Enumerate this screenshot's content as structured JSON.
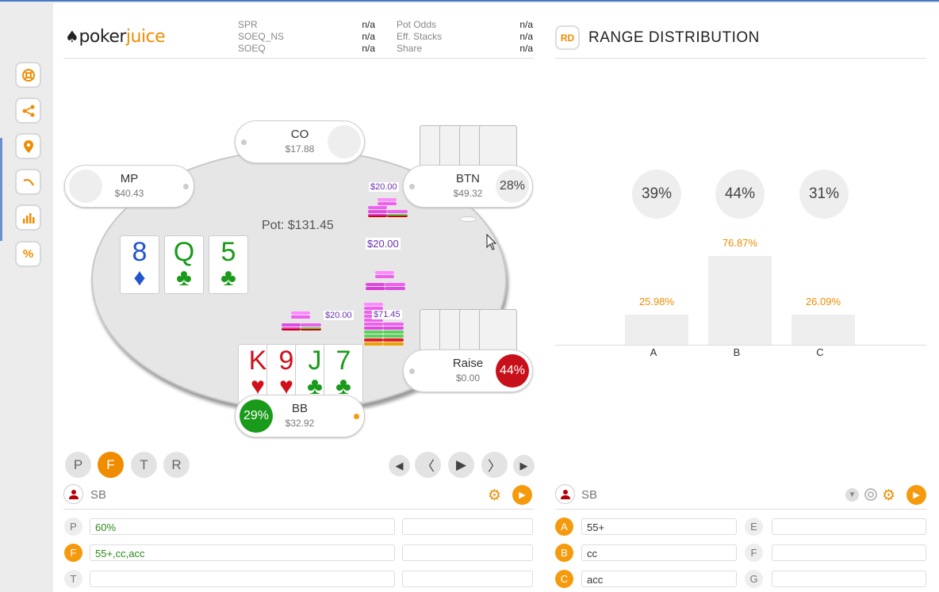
{
  "logo": {
    "part1": "poker",
    "part2": "juice"
  },
  "stats": {
    "left": [
      {
        "label": "SPR",
        "value": "n/a"
      },
      {
        "label": "SOEQ_NS",
        "value": "n/a"
      },
      {
        "label": "SOEQ",
        "value": "n/a"
      }
    ],
    "right": [
      {
        "label": "Pot Odds",
        "value": "n/a"
      },
      {
        "label": "Eff. Stacks",
        "value": "n/a"
      },
      {
        "label": "Share",
        "value": "n/a"
      }
    ]
  },
  "sidebar": {
    "icons": [
      "lifebuoy-icon",
      "share-icon",
      "location-pin-icon",
      "curve-icon",
      "bar-chart-icon",
      "percent-icon"
    ],
    "percent_glyph": "%"
  },
  "table": {
    "pot": "Pot: $131.45",
    "seats": {
      "co": {
        "name": "CO",
        "stack": "$17.88"
      },
      "mp": {
        "name": "MP",
        "stack": "$40.43"
      },
      "btn": {
        "name": "BTN",
        "stack": "$49.32",
        "equity": "28%"
      },
      "raise": {
        "name": "Raise",
        "stack": "$0.00",
        "equity": "44%"
      },
      "bb": {
        "name": "BB",
        "stack": "$32.92",
        "equity": "29%"
      }
    },
    "board": [
      {
        "rank": "8",
        "suit": "♦",
        "color": "#2255cc"
      },
      {
        "rank": "Q",
        "suit": "♣",
        "color": "#1a9a1a"
      },
      {
        "rank": "5",
        "suit": "♣",
        "color": "#1a9a1a"
      }
    ],
    "hero_cards": [
      {
        "rank": "K",
        "suit": "♥",
        "color": "#d0101a"
      },
      {
        "rank": "9",
        "suit": "♥",
        "color": "#d0101a"
      },
      {
        "rank": "J",
        "suit": "♣",
        "color": "#1a9a1a"
      },
      {
        "rank": "7",
        "suit": "♣",
        "color": "#1a9a1a"
      }
    ],
    "bets": {
      "btn": "$20.00",
      "middle": "$20.00",
      "bb": "$20.00",
      "pot_chips": "$71.45"
    }
  },
  "streets": [
    {
      "label": "P",
      "active": false
    },
    {
      "label": "F",
      "active": true
    },
    {
      "label": "T",
      "active": false
    },
    {
      "label": "R",
      "active": false
    }
  ],
  "playback": {
    "first": "◀",
    "prev": "〈",
    "play": "▶",
    "next": "〉",
    "last": "▶"
  },
  "left_panel": {
    "player": "SB",
    "rows": [
      {
        "label": "P",
        "value": "60%",
        "active": false
      },
      {
        "label": "F",
        "value": "55+,cc,acc",
        "active": true
      },
      {
        "label": "T",
        "value": "",
        "active": false
      }
    ]
  },
  "range_distribution": {
    "badge": "RD",
    "title": "RANGE DISTRIBUTION",
    "equities": [
      "39%",
      "44%",
      "31%"
    ],
    "player": "SB",
    "rows_left": [
      {
        "label": "A",
        "value": "55+"
      },
      {
        "label": "B",
        "value": "cc"
      },
      {
        "label": "C",
        "value": "acc"
      }
    ],
    "rows_right": [
      {
        "label": "E",
        "value": ""
      },
      {
        "label": "F",
        "value": ""
      },
      {
        "label": "G",
        "value": ""
      }
    ]
  },
  "chart_data": {
    "type": "bar",
    "categories": [
      "A",
      "B",
      "C"
    ],
    "values": [
      25.98,
      76.87,
      26.09
    ],
    "value_labels": [
      "25.98%",
      "76.87%",
      "26.09%"
    ],
    "bar_color": "#eeeeee",
    "label_color": "#f08c00"
  }
}
